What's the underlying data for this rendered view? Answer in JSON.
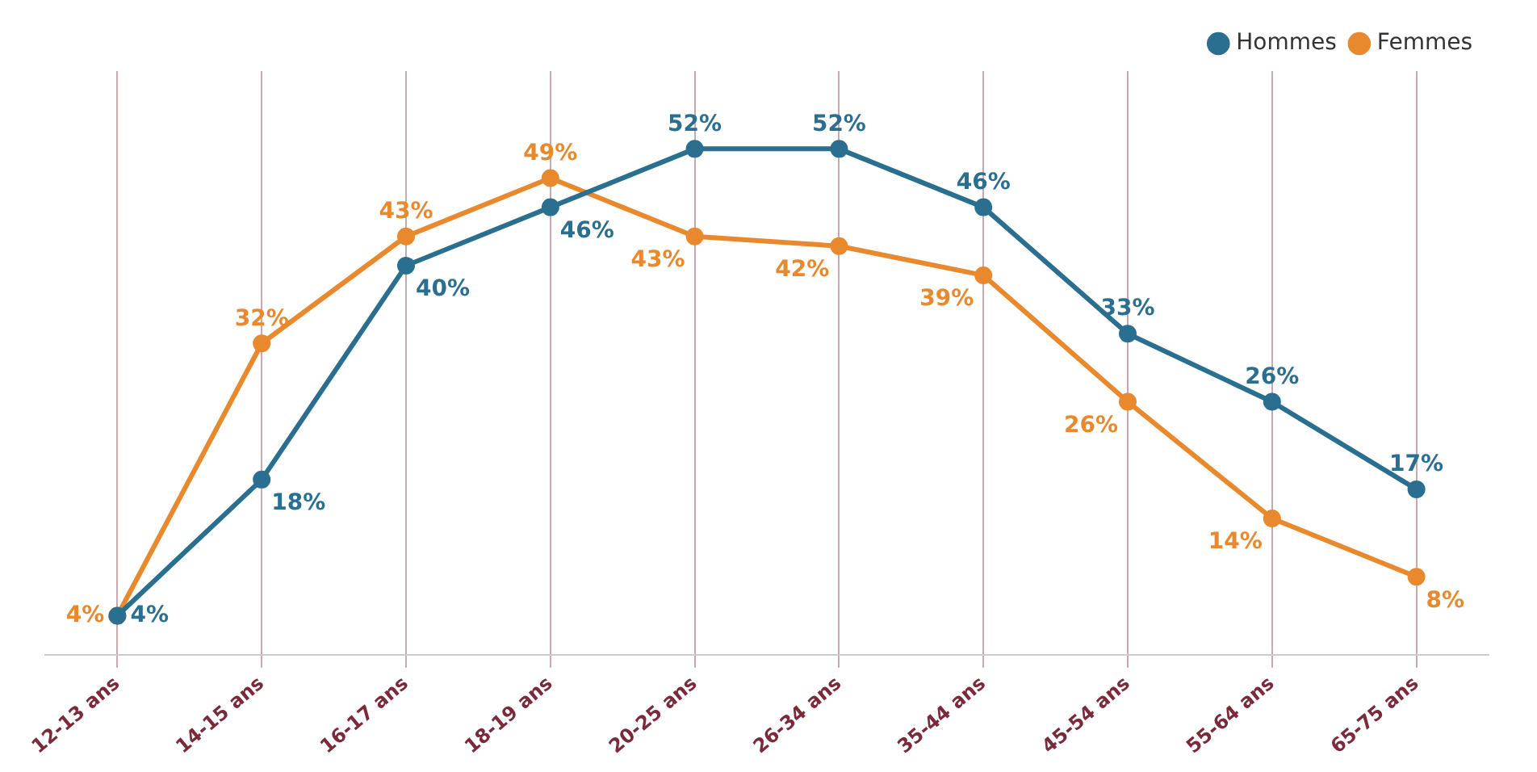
{
  "chart_data": {
    "type": "line",
    "categories": [
      "12-13 ans",
      "14-15 ans",
      "16-17 ans",
      "18-19 ans",
      "20-25 ans",
      "26-34 ans",
      "35-44 ans",
      "45-54 ans",
      "55-64 ans",
      "65-75 ans"
    ],
    "series": [
      {
        "name": "Hommes",
        "color": "#2a6f8f",
        "values": [
          4,
          18,
          40,
          46,
          52,
          52,
          46,
          33,
          26,
          17
        ],
        "value_labels": [
          "4%",
          "18%",
          "40%",
          "46%",
          "52%",
          "52%",
          "46%",
          "33%",
          "26%",
          "17%"
        ]
      },
      {
        "name": "Femmes",
        "color": "#e8892e",
        "values": [
          4,
          32,
          43,
          49,
          43,
          42,
          39,
          26,
          14,
          8
        ],
        "value_labels": [
          "4%",
          "32%",
          "43%",
          "49%",
          "43%",
          "42%",
          "39%",
          "26%",
          "14%",
          "8%"
        ]
      }
    ],
    "grid": "x",
    "legend": "top right",
    "marker": "circle",
    "line_style": "solid"
  }
}
